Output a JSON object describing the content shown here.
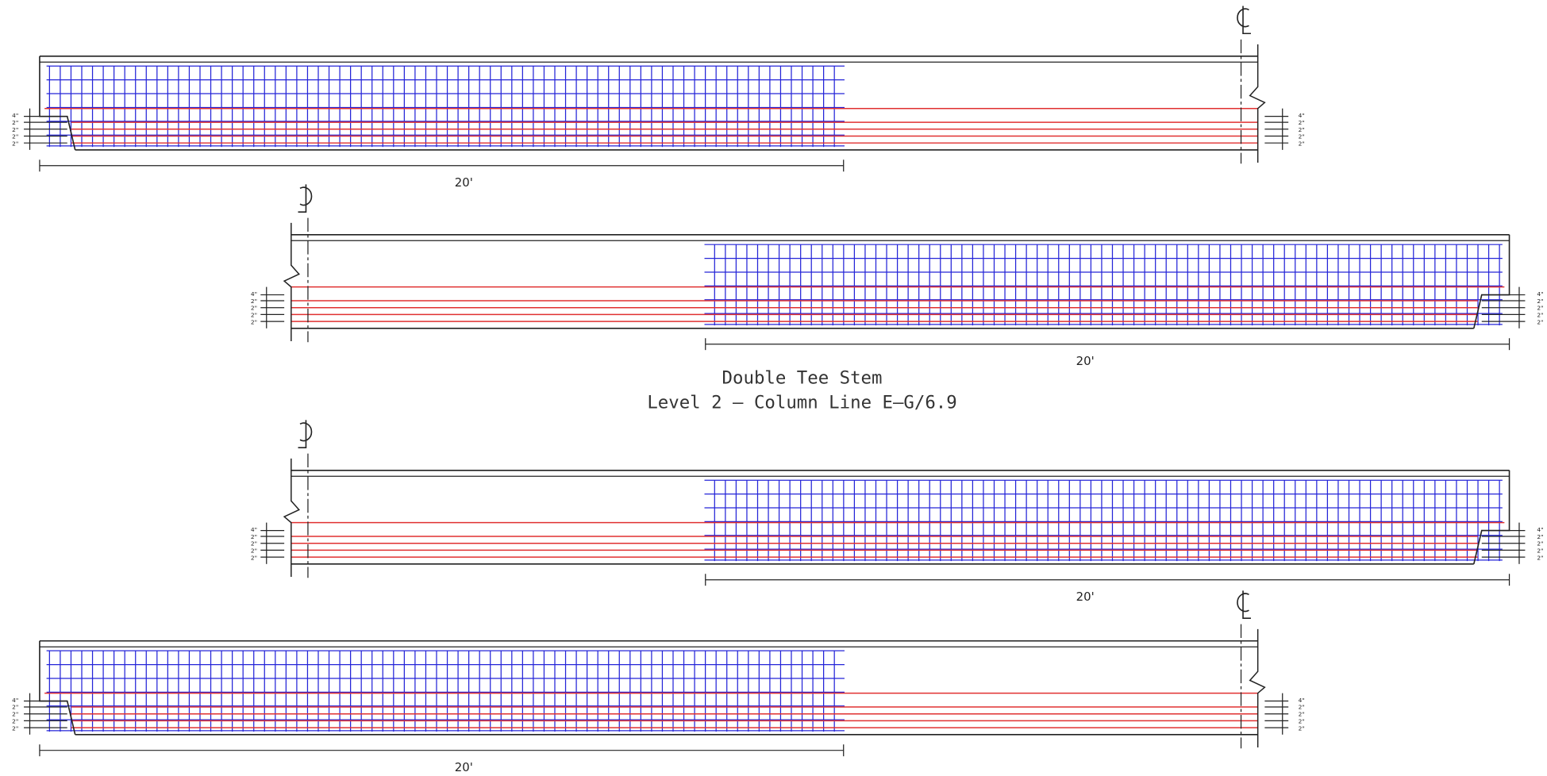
{
  "title": "Double Tee Stem",
  "subtitle": "Level 2 – Column Line E–G/6.9",
  "panels": [
    {
      "dimension": "20'",
      "strand_dims": [
        "4\"",
        "2\"",
        "2\"",
        "2\"",
        "2\""
      ]
    },
    {
      "dimension": "20'",
      "strand_dims": [
        "4\"",
        "2\"",
        "2\"",
        "2\"",
        "2\""
      ]
    },
    {
      "dimension": "20'",
      "strand_dims": [
        "4\"",
        "2\"",
        "2\"",
        "2\"",
        "2\""
      ]
    },
    {
      "dimension": "20'",
      "strand_dims": [
        "4\"",
        "2\"",
        "2\"",
        "2\"",
        "2\""
      ]
    }
  ]
}
